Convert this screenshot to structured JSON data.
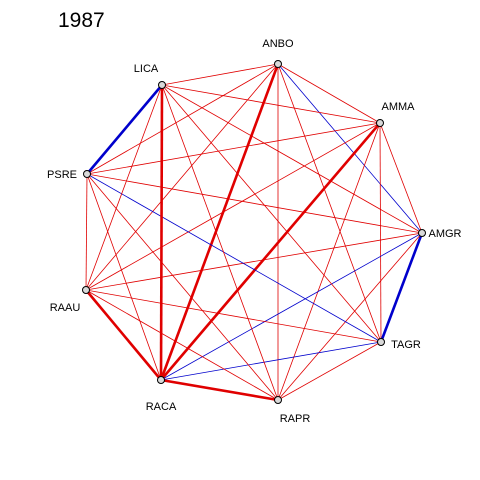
{
  "title": "1987",
  "colors": {
    "positive": "#e00000",
    "negative": "#0000cc"
  },
  "nodes": [
    {
      "id": "ANBO",
      "label": "ANBO"
    },
    {
      "id": "AMMA",
      "label": "AMMA"
    },
    {
      "id": "AMGR",
      "label": "AMGR"
    },
    {
      "id": "TAGR",
      "label": "TAGR"
    },
    {
      "id": "RAPR",
      "label": "RAPR"
    },
    {
      "id": "RACA",
      "label": "RACA"
    },
    {
      "id": "RAAU",
      "label": "RAAU"
    },
    {
      "id": "PSRE",
      "label": "PSRE"
    },
    {
      "id": "LICA",
      "label": "LICA"
    }
  ],
  "edges": [
    {
      "source": "ANBO",
      "target": "AMMA",
      "sign": "positive",
      "strength": "normal"
    },
    {
      "source": "ANBO",
      "target": "AMGR",
      "sign": "negative",
      "strength": "normal"
    },
    {
      "source": "ANBO",
      "target": "TAGR",
      "sign": "positive",
      "strength": "normal"
    },
    {
      "source": "ANBO",
      "target": "RAPR",
      "sign": "positive",
      "strength": "normal"
    },
    {
      "source": "ANBO",
      "target": "RACA",
      "sign": "positive",
      "strength": "strong"
    },
    {
      "source": "ANBO",
      "target": "RAAU",
      "sign": "positive",
      "strength": "normal"
    },
    {
      "source": "ANBO",
      "target": "PSRE",
      "sign": "positive",
      "strength": "normal"
    },
    {
      "source": "ANBO",
      "target": "LICA",
      "sign": "positive",
      "strength": "normal"
    },
    {
      "source": "AMMA",
      "target": "AMGR",
      "sign": "positive",
      "strength": "normal"
    },
    {
      "source": "AMMA",
      "target": "TAGR",
      "sign": "positive",
      "strength": "normal"
    },
    {
      "source": "AMMA",
      "target": "RAPR",
      "sign": "positive",
      "strength": "normal"
    },
    {
      "source": "AMMA",
      "target": "RACA",
      "sign": "positive",
      "strength": "strong"
    },
    {
      "source": "AMMA",
      "target": "RAAU",
      "sign": "positive",
      "strength": "normal"
    },
    {
      "source": "AMMA",
      "target": "PSRE",
      "sign": "positive",
      "strength": "normal"
    },
    {
      "source": "AMMA",
      "target": "LICA",
      "sign": "positive",
      "strength": "normal"
    },
    {
      "source": "AMGR",
      "target": "TAGR",
      "sign": "negative",
      "strength": "strong"
    },
    {
      "source": "AMGR",
      "target": "RAPR",
      "sign": "positive",
      "strength": "normal"
    },
    {
      "source": "AMGR",
      "target": "RACA",
      "sign": "negative",
      "strength": "normal"
    },
    {
      "source": "AMGR",
      "target": "RAAU",
      "sign": "positive",
      "strength": "normal"
    },
    {
      "source": "AMGR",
      "target": "PSRE",
      "sign": "positive",
      "strength": "normal"
    },
    {
      "source": "AMGR",
      "target": "LICA",
      "sign": "positive",
      "strength": "normal"
    },
    {
      "source": "TAGR",
      "target": "RAPR",
      "sign": "positive",
      "strength": "normal"
    },
    {
      "source": "TAGR",
      "target": "RACA",
      "sign": "negative",
      "strength": "normal"
    },
    {
      "source": "TAGR",
      "target": "RAAU",
      "sign": "positive",
      "strength": "normal"
    },
    {
      "source": "TAGR",
      "target": "PSRE",
      "sign": "negative",
      "strength": "normal"
    },
    {
      "source": "TAGR",
      "target": "LICA",
      "sign": "positive",
      "strength": "normal"
    },
    {
      "source": "RAPR",
      "target": "RACA",
      "sign": "positive",
      "strength": "strong"
    },
    {
      "source": "RAPR",
      "target": "RAAU",
      "sign": "positive",
      "strength": "normal"
    },
    {
      "source": "RAPR",
      "target": "PSRE",
      "sign": "positive",
      "strength": "normal"
    },
    {
      "source": "RAPR",
      "target": "LICA",
      "sign": "positive",
      "strength": "normal"
    },
    {
      "source": "RACA",
      "target": "RAAU",
      "sign": "positive",
      "strength": "strong"
    },
    {
      "source": "RACA",
      "target": "PSRE",
      "sign": "positive",
      "strength": "normal"
    },
    {
      "source": "RACA",
      "target": "LICA",
      "sign": "positive",
      "strength": "strong"
    },
    {
      "source": "RAAU",
      "target": "PSRE",
      "sign": "positive",
      "strength": "normal"
    },
    {
      "source": "RAAU",
      "target": "LICA",
      "sign": "positive",
      "strength": "normal"
    },
    {
      "source": "PSRE",
      "target": "LICA",
      "sign": "negative",
      "strength": "strong"
    }
  ]
}
